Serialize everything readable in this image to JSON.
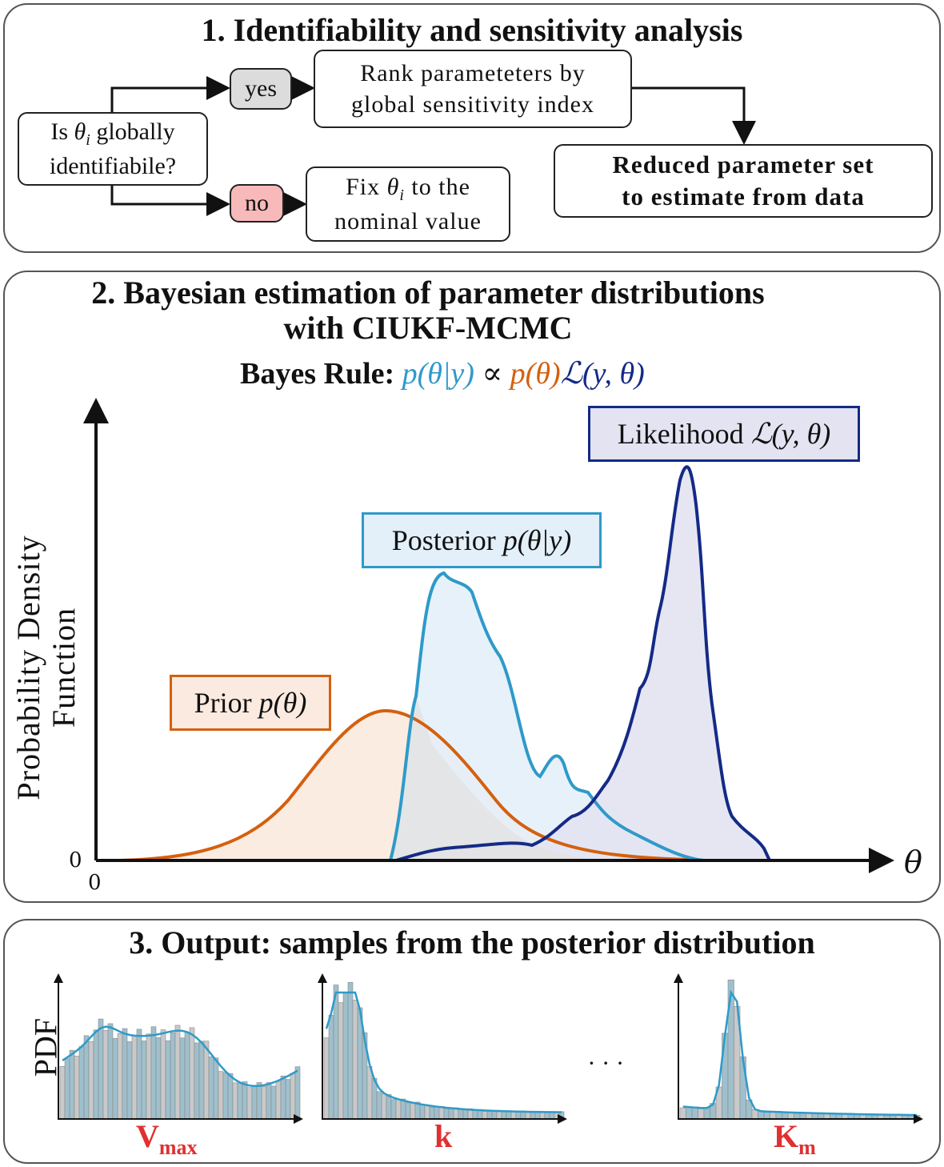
{
  "panel1": {
    "title": "1. Identifiability and sensitivity analysis",
    "question_line1_a": "Is ",
    "question_theta": "θ",
    "question_sub": "i",
    "question_line1_b": " globally",
    "question_line2": "identifiabile?",
    "yes_label": "yes",
    "no_label": "no",
    "rank_line1": "Rank parameteters by",
    "rank_line2": "global sensitivity index",
    "fix_line1_a": "Fix ",
    "fix_theta": "θ",
    "fix_sub": "i",
    "fix_line1_b": " to the",
    "fix_line2": "nominal value",
    "reduced_line1": "Reduced parameter set",
    "reduced_line2": "to estimate from data"
  },
  "panel2": {
    "title_line1": "2. Bayesian estimation of parameter distributions",
    "title_line2": "with CIUKF-MCMC",
    "bayes_prefix": "Bayes Rule:",
    "bayes_posterior": "p(θ|y)",
    "bayes_propto": " ∝ ",
    "bayes_prior": "p(θ)",
    "bayes_likelihood": "ℒ(y, θ)",
    "ylabel_line1": "Probability Density",
    "ylabel_line2": "Function",
    "xlabel": "θ",
    "origin_y": "0",
    "origin_x": "0",
    "prior_text": "Prior ",
    "prior_math": "p(θ)",
    "posterior_text": "Posterior ",
    "posterior_math": "p(θ|y)",
    "likelihood_text": "Likelihood ",
    "likelihood_math": "ℒ(y, θ)",
    "colors": {
      "prior": "#d4600f",
      "prior_fill": "#fbeadf",
      "posterior": "#2e9ac9",
      "posterior_fill": "#e3eff9",
      "likelihood": "#142a86",
      "likelihood_fill": "#e3e3f2"
    }
  },
  "panel3": {
    "title": "3. Output: samples from the posterior distribution",
    "ylabel": "PDF",
    "ellipsis": "· · ·",
    "hist_labels": [
      {
        "main": "V",
        "sub": "max"
      },
      {
        "main": "k",
        "sub": ""
      },
      {
        "main": "K",
        "sub": "m"
      }
    ],
    "label_color": "#e03030"
  }
}
